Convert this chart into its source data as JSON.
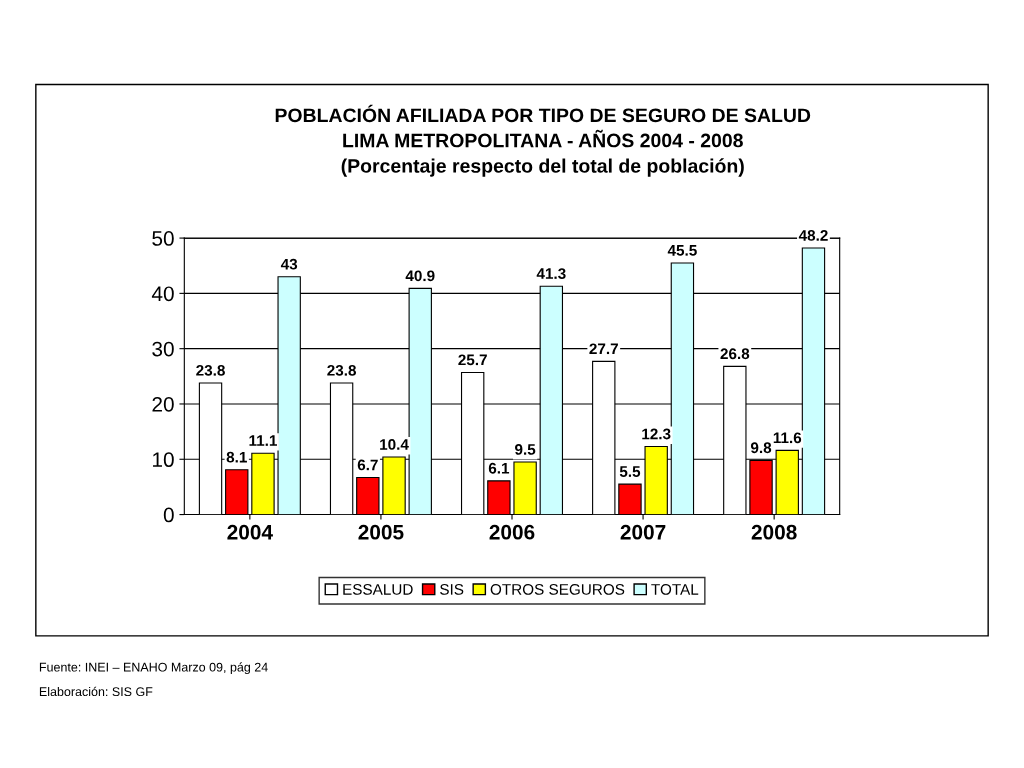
{
  "chart_data": {
    "type": "bar",
    "title": "POBLACIÓN AFILIADA POR TIPO DE SEGURO DE SALUD\nLIMA METROPOLITANA - AÑOS 2004 - 2008\n(Porcentaje respecto del total de población)",
    "categories": [
      "2004",
      "2005",
      "2006",
      "2007",
      "2008"
    ],
    "series": [
      {
        "name": "ESSALUD",
        "color": "#ffffff",
        "values": [
          23.8,
          23.8,
          25.7,
          27.7,
          26.8
        ]
      },
      {
        "name": "SIS",
        "color": "#ff0000",
        "values": [
          8.1,
          6.7,
          6.1,
          5.5,
          9.8
        ]
      },
      {
        "name": "OTROS SEGUROS",
        "color": "#ffff00",
        "values": [
          11.1,
          10.4,
          9.5,
          12.3,
          11.6
        ]
      },
      {
        "name": "TOTAL",
        "color": "#ccffff",
        "values": [
          43,
          40.9,
          41.3,
          45.5,
          48.2
        ]
      }
    ],
    "ylim": [
      0,
      50
    ],
    "yticks": [
      0,
      10,
      20,
      30,
      40,
      50
    ],
    "grid": "y",
    "legend": "bottom",
    "data_labels": true,
    "annotations": [
      "Fuente: INEI – ENAHO Marzo 09, pág 24",
      "Elaboración: SIS GF"
    ]
  }
}
